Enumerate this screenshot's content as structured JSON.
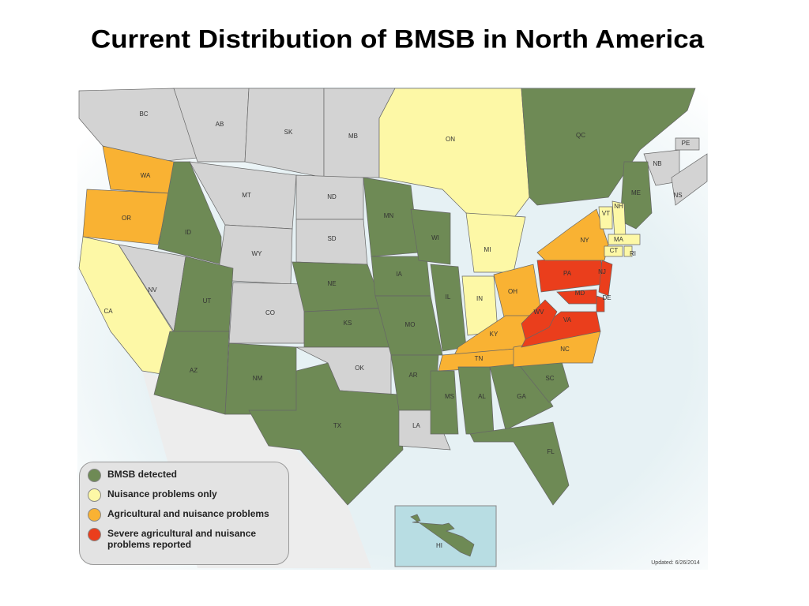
{
  "title": "Current Distribution of BMSB in North America",
  "legend": [
    {
      "label": "BMSB detected",
      "color": "#6e8a55"
    },
    {
      "label": "Nuisance problems only",
      "color": "#fdf8a6"
    },
    {
      "label": "Agricultural and nuisance problems",
      "color": "#f9b233"
    },
    {
      "label": "Severe agricultural and nuisance problems reported",
      "color": "#ea3e1c"
    }
  ],
  "regions": [
    {
      "label": "BC",
      "color": "#d3d3d3"
    },
    {
      "label": "AB",
      "color": "#d3d3d3"
    },
    {
      "label": "SK",
      "color": "#d3d3d3"
    },
    {
      "label": "MB",
      "color": "#d3d3d3"
    },
    {
      "label": "ON",
      "color": "#fdf8a6"
    },
    {
      "label": "QC",
      "color": "#6e8a55"
    },
    {
      "label": "NB",
      "color": "#d3d3d3"
    },
    {
      "label": "PE",
      "color": "#d3d3d3"
    },
    {
      "label": "NS",
      "color": "#d3d3d3"
    },
    {
      "label": "ME",
      "color": "#6e8a55"
    },
    {
      "label": "WA",
      "color": "#f9b233"
    },
    {
      "label": "OR",
      "color": "#f9b233"
    },
    {
      "label": "CA",
      "color": "#fdf8a6"
    },
    {
      "label": "NV",
      "color": "#d3d3d3"
    },
    {
      "label": "ID",
      "color": "#6e8a55"
    },
    {
      "label": "MT",
      "color": "#d3d3d3"
    },
    {
      "label": "WY",
      "color": "#d3d3d3"
    },
    {
      "label": "UT",
      "color": "#6e8a55"
    },
    {
      "label": "CO",
      "color": "#d3d3d3"
    },
    {
      "label": "AZ",
      "color": "#6e8a55"
    },
    {
      "label": "NM",
      "color": "#6e8a55"
    },
    {
      "label": "ND",
      "color": "#d3d3d3"
    },
    {
      "label": "SD",
      "color": "#d3d3d3"
    },
    {
      "label": "NE",
      "color": "#6e8a55"
    },
    {
      "label": "KS",
      "color": "#6e8a55"
    },
    {
      "label": "OK",
      "color": "#d3d3d3"
    },
    {
      "label": "TX",
      "color": "#6e8a55"
    },
    {
      "label": "MN",
      "color": "#6e8a55"
    },
    {
      "label": "IA",
      "color": "#6e8a55"
    },
    {
      "label": "MO",
      "color": "#6e8a55"
    },
    {
      "label": "AR",
      "color": "#6e8a55"
    },
    {
      "label": "LA",
      "color": "#d3d3d3"
    },
    {
      "label": "WI",
      "color": "#6e8a55"
    },
    {
      "label": "IL",
      "color": "#6e8a55"
    },
    {
      "label": "MI",
      "color": "#fdf8a6"
    },
    {
      "label": "IN",
      "color": "#fdf8a6"
    },
    {
      "label": "OH",
      "color": "#f9b233"
    },
    {
      "label": "KY",
      "color": "#f9b233"
    },
    {
      "label": "TN",
      "color": "#f9b233"
    },
    {
      "label": "MS",
      "color": "#6e8a55"
    },
    {
      "label": "AL",
      "color": "#6e8a55"
    },
    {
      "label": "GA",
      "color": "#6e8a55"
    },
    {
      "label": "SC",
      "color": "#6e8a55"
    },
    {
      "label": "FL",
      "color": "#6e8a55"
    },
    {
      "label": "NC",
      "color": "#f9b233"
    },
    {
      "label": "VA",
      "color": "#ea3e1c"
    },
    {
      "label": "WV",
      "color": "#ea3e1c"
    },
    {
      "label": "PA",
      "color": "#ea3e1c"
    },
    {
      "label": "NY",
      "color": "#f9b233"
    },
    {
      "label": "NJ",
      "color": "#ea3e1c"
    },
    {
      "label": "DE",
      "color": "#ea3e1c"
    },
    {
      "label": "MD",
      "color": "#ea3e1c"
    },
    {
      "label": "VT",
      "color": "#fdf8a6"
    },
    {
      "label": "NH",
      "color": "#fdf8a6"
    },
    {
      "label": "MA",
      "color": "#fdf8a6"
    },
    {
      "label": "CT",
      "color": "#fdf8a6"
    },
    {
      "label": "RI",
      "color": "#fdf8a6"
    },
    {
      "label": "HI",
      "color": "#6e8a55"
    }
  ],
  "updated": "Updated: 6/26/2014"
}
